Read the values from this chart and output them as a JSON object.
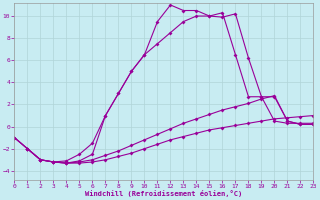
{
  "bg_color": "#c8ecf2",
  "grid_color": "#b0d4d8",
  "line_color": "#990099",
  "xlabel": "Windchill (Refroidissement éolien,°C)",
  "xlim": [
    0,
    23
  ],
  "ylim": [
    -4.8,
    11.2
  ],
  "yticks": [
    -4,
    -2,
    0,
    2,
    4,
    6,
    8,
    10
  ],
  "xticks": [
    0,
    1,
    2,
    3,
    4,
    5,
    6,
    7,
    8,
    9,
    10,
    11,
    12,
    13,
    14,
    15,
    16,
    17,
    18,
    19,
    20,
    21,
    22,
    23
  ],
  "c1_x": [
    0,
    1,
    2,
    3,
    4,
    5,
    6,
    7,
    8,
    9,
    10,
    11,
    12,
    13,
    14,
    15,
    16,
    17,
    18,
    19,
    20,
    21,
    22,
    23
  ],
  "c1_y": [
    -1.0,
    -2.0,
    -3.0,
    -3.2,
    -3.3,
    -3.3,
    -3.2,
    -3.0,
    -2.7,
    -2.4,
    -2.0,
    -1.6,
    -1.2,
    -0.9,
    -0.6,
    -0.3,
    -0.1,
    0.1,
    0.3,
    0.5,
    0.7,
    0.8,
    0.9,
    1.0
  ],
  "c2_x": [
    0,
    1,
    2,
    3,
    4,
    5,
    6,
    7,
    8,
    9,
    10,
    11,
    12,
    13,
    14,
    15,
    16,
    17,
    18,
    19,
    20,
    21,
    22,
    23
  ],
  "c2_y": [
    -1.0,
    -2.0,
    -3.0,
    -3.2,
    -3.3,
    -3.2,
    -3.0,
    -2.6,
    -2.2,
    -1.7,
    -1.2,
    -0.7,
    -0.2,
    0.3,
    0.7,
    1.1,
    1.5,
    1.8,
    2.1,
    2.5,
    2.8,
    0.5,
    0.2,
    0.2
  ],
  "c3_x": [
    0,
    1,
    2,
    3,
    4,
    5,
    6,
    7,
    8,
    9,
    10,
    11,
    12,
    13,
    14,
    15,
    16,
    17,
    18,
    19,
    20,
    21,
    22,
    23
  ],
  "c3_y": [
    -1.0,
    -2.0,
    -3.0,
    -3.2,
    -3.1,
    -2.5,
    -1.5,
    1.0,
    3.0,
    5.0,
    6.5,
    7.5,
    8.5,
    9.5,
    10.0,
    10.0,
    10.3,
    6.5,
    2.7,
    2.7,
    0.5,
    0.3,
    0.3,
    0.3
  ],
  "c4_x": [
    1,
    2,
    3,
    4,
    5,
    6,
    7,
    8,
    9,
    10,
    11,
    12,
    13,
    14,
    15,
    16,
    17,
    18,
    19,
    20,
    21,
    22,
    23
  ],
  "c4_y": [
    -2.0,
    -3.0,
    -3.2,
    -3.3,
    -3.1,
    -2.5,
    1.0,
    3.0,
    5.0,
    6.5,
    9.5,
    11.0,
    10.5,
    10.5,
    10.0,
    9.9,
    10.2,
    6.2,
    2.7,
    2.7,
    0.5,
    0.2,
    0.2
  ]
}
